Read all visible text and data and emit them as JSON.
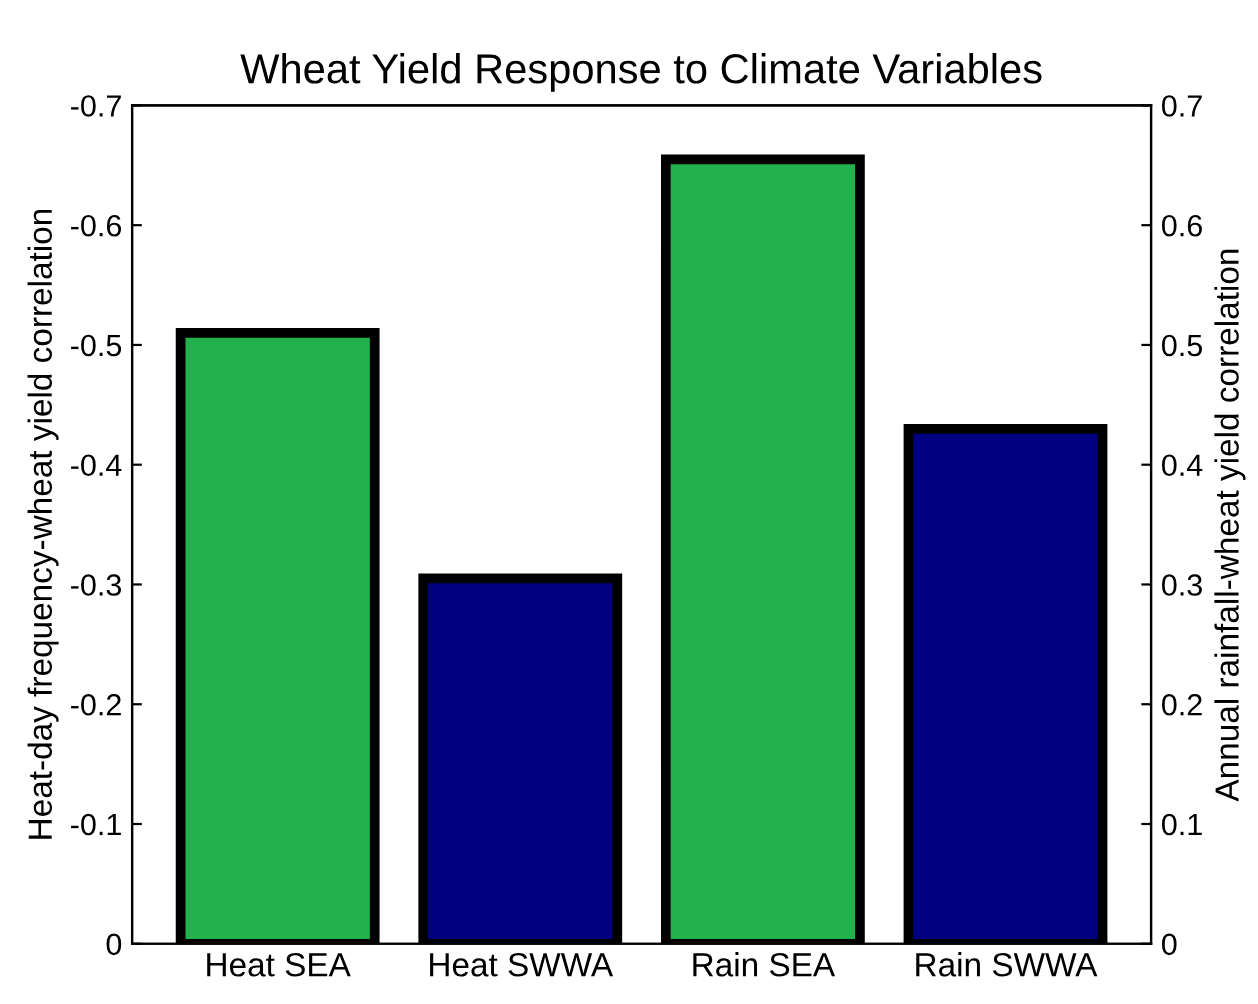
{
  "chart_data": {
    "type": "bar",
    "title": "Wheat Yield Response to Climate Variables",
    "categories": [
      "Heat SEA",
      "Heat SWWA",
      "Rain SEA",
      "Rain SWWA"
    ],
    "ylabel": "Heat-day frequency-wheat yield correlation",
    "y2label": "Annual rainfall-wheat yield correlation",
    "series": [
      {
        "axis": "y",
        "values": [
          -0.51,
          -0.305,
          null,
          null
        ],
        "colors": [
          "#22b14c",
          "#000080",
          "#22b14c",
          "#000080"
        ]
      },
      {
        "axis": "y2",
        "values": [
          null,
          null,
          0.655,
          0.43
        ],
        "colors": [
          "#22b14c",
          "#000080",
          "#22b14c",
          "#000080"
        ]
      }
    ],
    "ylim": [
      0,
      -0.7
    ],
    "yticks": [
      0,
      -0.1,
      -0.2,
      -0.3,
      -0.4,
      -0.5,
      -0.6,
      -0.7
    ],
    "y2lim": [
      0,
      0.7
    ],
    "y2ticks": [
      0,
      0.1,
      0.2,
      0.3,
      0.4,
      0.5,
      0.6,
      0.7
    ],
    "grid": false
  }
}
